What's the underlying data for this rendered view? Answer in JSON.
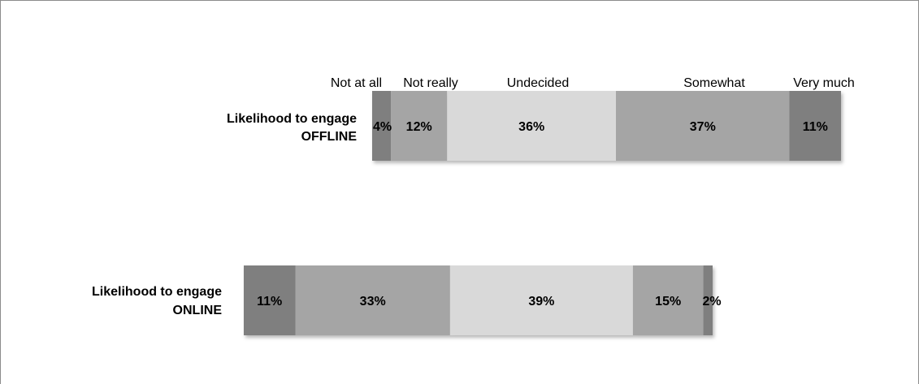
{
  "chart_data": {
    "type": "bar",
    "orientation": "horizontal",
    "stacked": true,
    "legend": {
      "placement": "above-top-bar",
      "entries": [
        "Not at all",
        "Not really",
        "Undecided",
        "Somewhat",
        "Very much"
      ]
    },
    "rows": [
      {
        "label_line1": "Likelihood to engage",
        "label_line2": "OFFLINE",
        "values": [
          4,
          12,
          36,
          37,
          11
        ],
        "value_labels": [
          "4%",
          "12%",
          "36%",
          "37%",
          "11%"
        ]
      },
      {
        "label_line1": "Likelihood to engage",
        "label_line2": "ONLINE",
        "values": [
          11,
          33,
          39,
          15,
          2
        ],
        "value_labels": [
          "11%",
          "33%",
          "39%",
          "15%",
          "2%"
        ]
      }
    ],
    "colors": [
      "#7f7f7f",
      "#a5a5a5",
      "#d9d9d9",
      "#a5a5a5",
      "#7f7f7f"
    ],
    "grid": false
  }
}
